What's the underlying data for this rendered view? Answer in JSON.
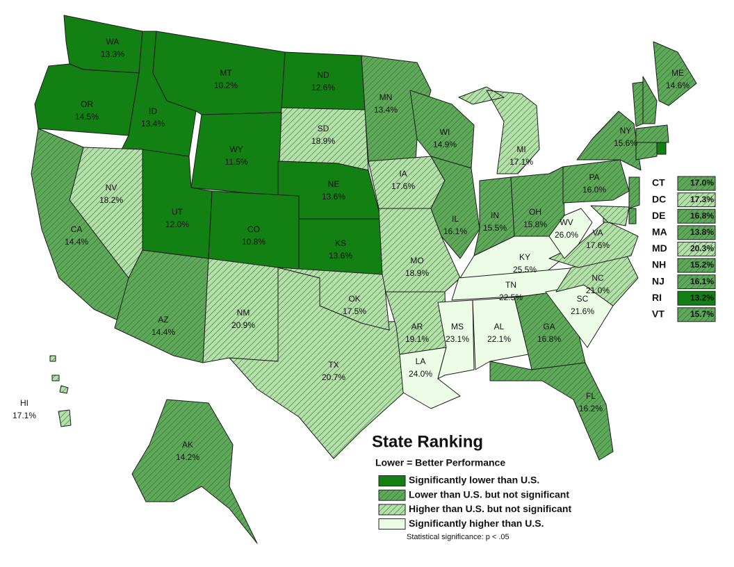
{
  "states": [
    {
      "abbr": "WA",
      "value": "13.3%",
      "category": 0
    },
    {
      "abbr": "OR",
      "value": "14.5%",
      "category": 0
    },
    {
      "abbr": "ID",
      "value": "13.4%",
      "category": 0
    },
    {
      "abbr": "MT",
      "value": "10.2%",
      "category": 0
    },
    {
      "abbr": "ND",
      "value": "12.6%",
      "category": 0
    },
    {
      "abbr": "SD",
      "value": "18.9%",
      "category": 2
    },
    {
      "abbr": "WY",
      "value": "11.5%",
      "category": 0
    },
    {
      "abbr": "NE",
      "value": "13.6%",
      "category": 0
    },
    {
      "abbr": "UT",
      "value": "12.0%",
      "category": 0
    },
    {
      "abbr": "CO",
      "value": "10.8%",
      "category": 0
    },
    {
      "abbr": "KS",
      "value": "13.6%",
      "category": 0
    },
    {
      "abbr": "NV",
      "value": "18.2%",
      "category": 2
    },
    {
      "abbr": "CA",
      "value": "14.4%",
      "category": 1
    },
    {
      "abbr": "AZ",
      "value": "14.4%",
      "category": 1
    },
    {
      "abbr": "NM",
      "value": "20.9%",
      "category": 2
    },
    {
      "abbr": "TX",
      "value": "20.7%",
      "category": 2
    },
    {
      "abbr": "OK",
      "value": "17.5%",
      "category": 2
    },
    {
      "abbr": "MN",
      "value": "13.4%",
      "category": 1
    },
    {
      "abbr": "IA",
      "value": "17.6%",
      "category": 2
    },
    {
      "abbr": "MO",
      "value": "18.9%",
      "category": 2
    },
    {
      "abbr": "AR",
      "value": "19.1%",
      "category": 2
    },
    {
      "abbr": "LA",
      "value": "24.0%",
      "category": 3
    },
    {
      "abbr": "WI",
      "value": "14.9%",
      "category": 1
    },
    {
      "abbr": "IL",
      "value": "16.1%",
      "category": 1
    },
    {
      "abbr": "IN",
      "value": "15.5%",
      "category": 1
    },
    {
      "abbr": "MI",
      "value": "17.1%",
      "category": 2
    },
    {
      "abbr": "OH",
      "value": "15.8%",
      "category": 1
    },
    {
      "abbr": "KY",
      "value": "25.5%",
      "category": 3
    },
    {
      "abbr": "TN",
      "value": "22.5%",
      "category": 3
    },
    {
      "abbr": "MS",
      "value": "23.1%",
      "category": 3
    },
    {
      "abbr": "AL",
      "value": "22.1%",
      "category": 3
    },
    {
      "abbr": "GA",
      "value": "16.8%",
      "category": 1
    },
    {
      "abbr": "FL",
      "value": "16.2%",
      "category": 1
    },
    {
      "abbr": "SC",
      "value": "21.6%",
      "category": 3
    },
    {
      "abbr": "NC",
      "value": "21.0%",
      "category": 2
    },
    {
      "abbr": "VA",
      "value": "17.6%",
      "category": 2
    },
    {
      "abbr": "WV",
      "value": "26.0%",
      "category": 3
    },
    {
      "abbr": "PA",
      "value": "16.0%",
      "category": 1
    },
    {
      "abbr": "NY",
      "value": "15.6%",
      "category": 1
    },
    {
      "abbr": "ME",
      "value": "14.6%",
      "category": 1
    },
    {
      "abbr": "HI",
      "value": "17.1%",
      "category": 2
    },
    {
      "abbr": "AK",
      "value": "14.2%",
      "category": 1
    }
  ],
  "inset_states": [
    {
      "abbr": "CT",
      "value": "17.0%",
      "category": 1
    },
    {
      "abbr": "DC",
      "value": "17.3%",
      "category": 2
    },
    {
      "abbr": "DE",
      "value": "16.8%",
      "category": 1
    },
    {
      "abbr": "MA",
      "value": "13.8%",
      "category": 1
    },
    {
      "abbr": "MD",
      "value": "20.3%",
      "category": 2
    },
    {
      "abbr": "NH",
      "value": "15.2%",
      "category": 1
    },
    {
      "abbr": "NJ",
      "value": "16.1%",
      "category": 1
    },
    {
      "abbr": "RI",
      "value": "13.2%",
      "category": 0
    },
    {
      "abbr": "VT",
      "value": "15.7%",
      "category": 1
    }
  ],
  "legend": {
    "title": "State Ranking",
    "subtitle": "Lower = Better Performance",
    "items": [
      {
        "label": "Significantly lower than U.S.",
        "color": "#138013",
        "hatch": false
      },
      {
        "label": "Lower than U.S. but not significant",
        "color": "#5da859",
        "hatch": true
      },
      {
        "label": "Higher than U.S. but not significant",
        "color": "#b4e0a9",
        "hatch": true
      },
      {
        "label": "Significantly higher than U.S.",
        "color": "#ecfce7",
        "hatch": false
      }
    ],
    "note": "Statistical significance: p < .05"
  }
}
